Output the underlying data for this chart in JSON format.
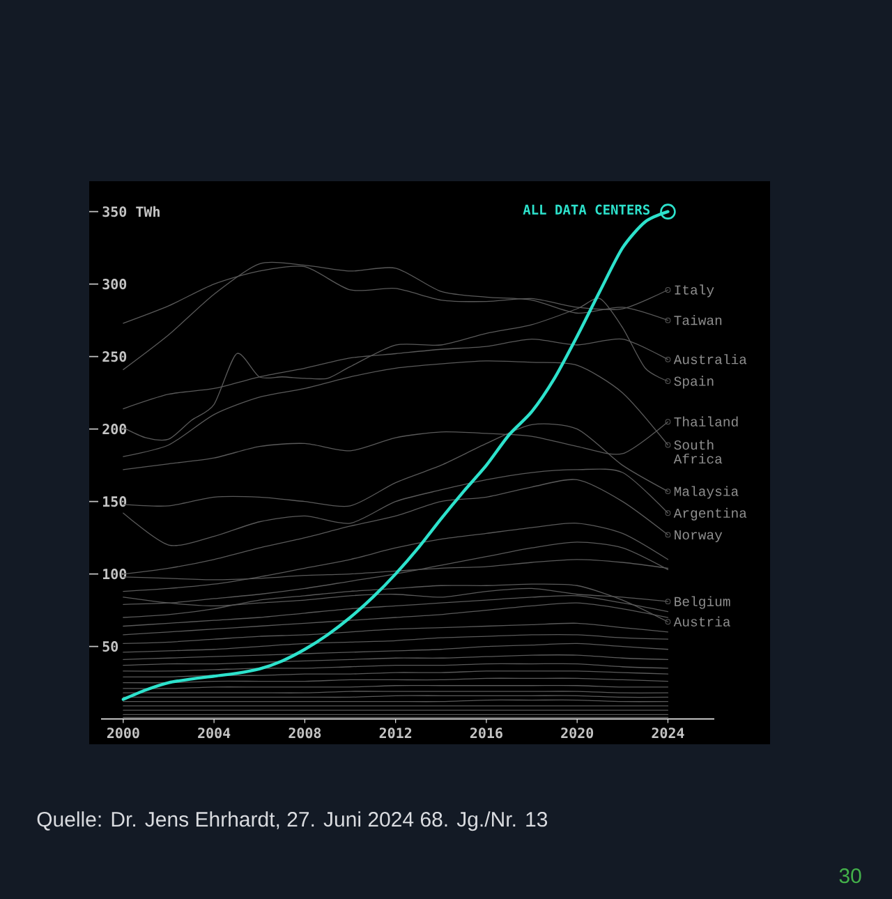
{
  "chart_data": {
    "type": "line",
    "x": [
      2000,
      2002,
      2004,
      2006,
      2008,
      2010,
      2012,
      2014,
      2016,
      2018,
      2020,
      2022,
      2024
    ],
    "xlim": [
      1998.5,
      2028.5
    ],
    "ylim": [
      -17.5,
      371
    ],
    "xticks": [
      2000,
      2004,
      2008,
      2012,
      2016,
      2020,
      2024
    ],
    "yticks": [
      50,
      100,
      150,
      200,
      250,
      300,
      {
        "value": 350,
        "label": "350 TWh"
      }
    ],
    "legend": "right",
    "series": [
      {
        "color": "#5a5a5a",
        "values": [
          1,
          1,
          1,
          1,
          1,
          1,
          1,
          1,
          1,
          1,
          1,
          1,
          1
        ]
      },
      {
        "color": "#5a5a5a",
        "values": [
          3,
          3,
          3,
          3,
          3,
          3,
          3,
          3,
          3,
          3,
          3,
          3,
          3
        ]
      },
      {
        "color": "#5a5a5a",
        "values": [
          6,
          6,
          6,
          6,
          6,
          6,
          6,
          6,
          6,
          6,
          6,
          6,
          6
        ]
      },
      {
        "color": "#5a5a5a",
        "values": [
          9,
          9,
          9,
          9,
          9,
          9,
          9,
          9,
          9,
          9,
          9,
          9,
          9
        ]
      },
      {
        "color": "#5a5a5a",
        "values": [
          12,
          12,
          12,
          12,
          12,
          12,
          12,
          12,
          13,
          13,
          13,
          12,
          12
        ]
      },
      {
        "color": "#5a5a5a",
        "values": [
          15,
          15,
          15,
          15,
          15,
          15,
          16,
          16,
          16,
          16,
          16,
          15,
          15
        ]
      },
      {
        "color": "#5a5a5a",
        "values": [
          18,
          18,
          18,
          18,
          18,
          19,
          19,
          19,
          19,
          19,
          19,
          18,
          18
        ]
      },
      {
        "color": "#5a5a5a",
        "values": [
          21,
          21,
          22,
          22,
          22,
          22,
          23,
          23,
          23,
          23,
          23,
          22,
          22
        ]
      },
      {
        "color": "#5a5a5a",
        "values": [
          25,
          25,
          26,
          26,
          26,
          27,
          27,
          27,
          28,
          28,
          28,
          27,
          26
        ]
      },
      {
        "color": "#5a5a5a",
        "values": [
          29,
          29,
          30,
          30,
          31,
          31,
          32,
          32,
          33,
          33,
          33,
          32,
          31
        ]
      },
      {
        "color": "#5a5a5a",
        "values": [
          33,
          33,
          34,
          35,
          35,
          36,
          37,
          37,
          38,
          38,
          38,
          36,
          35
        ]
      },
      {
        "color": "#5a5a5a",
        "values": [
          37,
          38,
          38,
          39,
          40,
          41,
          42,
          42,
          43,
          44,
          44,
          42,
          41
        ]
      },
      {
        "color": "#5a5a5a",
        "values": [
          41,
          42,
          43,
          44,
          45,
          46,
          47,
          48,
          50,
          51,
          52,
          50,
          48
        ]
      },
      {
        "color": "#5a5a5a",
        "values": [
          46,
          47,
          48,
          50,
          52,
          53,
          54,
          56,
          57,
          58,
          58,
          56,
          55
        ]
      },
      {
        "color": "#5a5a5a",
        "values": [
          52,
          53,
          55,
          57,
          58,
          60,
          62,
          63,
          64,
          65,
          66,
          63,
          60
        ]
      },
      {
        "color": "#5a5a5a",
        "values": [
          58,
          60,
          62,
          64,
          66,
          68,
          70,
          72,
          75,
          78,
          80,
          76,
          70
        ]
      },
      {
        "color": "#5a5a5a",
        "values": [
          64,
          66,
          68,
          70,
          73,
          76,
          78,
          80,
          82,
          84,
          85,
          80,
          74
        ]
      },
      {
        "color": "#5a5a5a",
        "values": [
          79,
          80,
          83,
          86,
          90,
          95,
          100,
          106,
          112,
          118,
          122,
          118,
          103
        ]
      },
      {
        "color": "#5a5a5a",
        "values": [
          88,
          90,
          93,
          98,
          104,
          110,
          118,
          124,
          128,
          132,
          135,
          128,
          110
        ]
      },
      {
        "color": "#5a5a5a",
        "values": [
          98,
          97,
          96,
          97,
          99,
          100,
          102,
          104,
          105,
          108,
          110,
          108,
          104
        ]
      },
      {
        "name": "Austria",
        "color": "#5a5a5a",
        "values": [
          70,
          72,
          76,
          82,
          85,
          88,
          90,
          92,
          92,
          93,
          92,
          82,
          67
        ]
      },
      {
        "name": "Belgium",
        "color": "#5a5a5a",
        "values": [
          84,
          80,
          78,
          80,
          82,
          85,
          86,
          84,
          88,
          90,
          86,
          84,
          81
        ]
      },
      {
        "name": "Norway",
        "color": "#5a5a5a",
        "values": [
          100,
          104,
          110,
          118,
          125,
          133,
          140,
          150,
          153,
          160,
          165,
          150,
          127
        ]
      },
      {
        "name": "Argentina",
        "color": "#5a5a5a",
        "values": [
          142,
          120,
          126,
          136,
          140,
          135,
          150,
          158,
          165,
          170,
          172,
          170,
          142
        ]
      },
      {
        "name": "Malaysia",
        "color": "#5a5a5a",
        "values": [
          148,
          147,
          153,
          153,
          150,
          147,
          163,
          175,
          190,
          203,
          200,
          175,
          157
        ]
      },
      {
        "name": "South Africa",
        "color": "#5a5a5a",
        "values": [
          181,
          189,
          210,
          222,
          228,
          236,
          242,
          245,
          247,
          246,
          244,
          225,
          189
        ]
      },
      {
        "name": "Thailand",
        "color": "#5a5a5a",
        "values": [
          172,
          176,
          180,
          188,
          190,
          185,
          194,
          198,
          197,
          195,
          188,
          183,
          205
        ]
      },
      {
        "name": "Spain",
        "color": "#5a5a5a",
        "x": [
          2000,
          2001,
          2002,
          2003,
          2004,
          2005,
          2006,
          2007,
          2008,
          2009,
          2010,
          2012,
          2014,
          2016,
          2018,
          2020,
          2021,
          2022,
          2023,
          2024
        ],
        "values": [
          201,
          194,
          193,
          206,
          217,
          252,
          236,
          236,
          235,
          235,
          243,
          258,
          258,
          266,
          272,
          283,
          290,
          270,
          242,
          233
        ]
      },
      {
        "name": "Australia",
        "color": "#5a5a5a",
        "values": [
          214,
          224,
          228,
          236,
          242,
          249,
          252,
          255,
          257,
          262,
          258,
          262,
          248
        ]
      },
      {
        "name": "Taiwan",
        "color": "#5a5a5a",
        "values": [
          241,
          265,
          293,
          314,
          313,
          309,
          311,
          295,
          291,
          289,
          280,
          284,
          275
        ]
      },
      {
        "name": "Italy",
        "color": "#5a5a5a",
        "values": [
          273,
          285,
          300,
          309,
          312,
          296,
          297,
          289,
          288,
          290,
          284,
          283,
          296
        ]
      },
      {
        "name": "ALL DATA CENTERS",
        "color": "#2de2cc",
        "x": [
          2000,
          2001,
          2002,
          2003,
          2004,
          2005,
          2006,
          2007,
          2008,
          2009,
          2010,
          2011,
          2012,
          2013,
          2014,
          2015,
          2016,
          2017,
          2018,
          2019,
          2020,
          2021,
          2022,
          2023,
          2024
        ],
        "values": [
          13.5,
          20,
          25,
          27.5,
          29.5,
          31.5,
          34.5,
          40,
          48,
          58,
          70,
          84,
          100,
          118,
          138,
          157,
          175,
          196,
          212,
          235,
          264,
          295,
          325,
          343,
          350
        ]
      }
    ],
    "annotations": [
      "Quelle: Dr. Jens Ehrhardt, 27. Juni 2024 68. Jg./Nr. 13",
      "30"
    ]
  }
}
